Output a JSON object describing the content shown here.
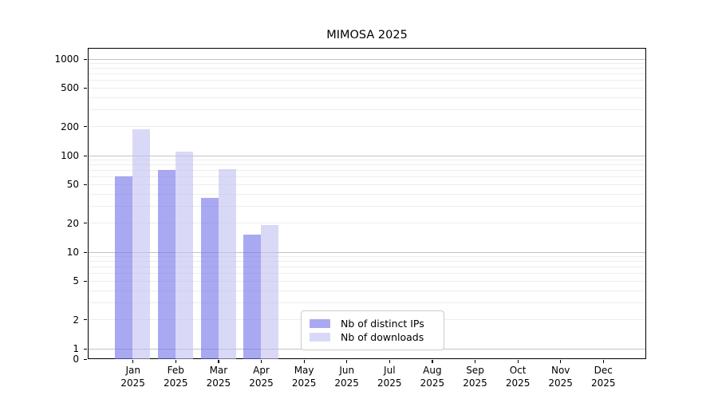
{
  "chart_data": {
    "type": "bar",
    "title": "MIMOSA 2025",
    "categories": [
      "Jan 2025",
      "Feb 2025",
      "Mar 2025",
      "Apr 2025",
      "May 2025",
      "Jun 2025",
      "Jul 2025",
      "Aug 2025",
      "Sep 2025",
      "Oct 2025",
      "Nov 2025",
      "Dec 2025"
    ],
    "series": [
      {
        "name": "Nb of distinct IPs",
        "color": "#a9a9f1",
        "color_rgba": "rgba(112,112,232,0.6)",
        "values": [
          60,
          70,
          36,
          15,
          0,
          0,
          0,
          0,
          0,
          0,
          0,
          0
        ]
      },
      {
        "name": "Nb of downloads",
        "color": "#d9d9f7",
        "color_rgba": "rgba(192,192,242,0.6)",
        "values": [
          185,
          110,
          72,
          19,
          0,
          0,
          0,
          0,
          0,
          0,
          0,
          0
        ]
      }
    ],
    "xlabel": "",
    "ylabel": "",
    "yscale": "symlog",
    "ylim": [
      0,
      1300
    ],
    "yticks": [
      0,
      1,
      2,
      5,
      10,
      20,
      50,
      100,
      200,
      500,
      1000
    ],
    "grid": "horizontal major+minor (log)",
    "legend_position": "lower center-left inside axes"
  }
}
